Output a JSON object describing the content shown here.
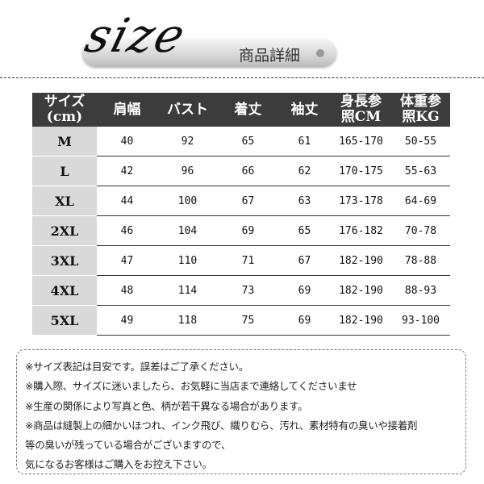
{
  "header": {
    "logo_text": "size",
    "subtitle": "商品詳細"
  },
  "table": {
    "columns": [
      "サイズ\n(cm)",
      "肩幅",
      "バスト",
      "着丈",
      "袖丈",
      "身長参\n照CM",
      "体重参\n照KG"
    ],
    "rows": [
      [
        "M",
        "40",
        "92",
        "65",
        "61",
        "165-170",
        "50-55"
      ],
      [
        "L",
        "42",
        "96",
        "66",
        "62",
        "170-175",
        "55-63"
      ],
      [
        "XL",
        "44",
        "100",
        "67",
        "63",
        "173-178",
        "64-69"
      ],
      [
        "2XL",
        "46",
        "104",
        "69",
        "65",
        "176-182",
        "70-78"
      ],
      [
        "3XL",
        "47",
        "110",
        "71",
        "67",
        "182-190",
        "78-88"
      ],
      [
        "4XL",
        "48",
        "114",
        "73",
        "69",
        "182-190",
        "88-93"
      ],
      [
        "5XL",
        "49",
        "118",
        "75",
        "69",
        "182-190",
        "93-100"
      ]
    ]
  },
  "notes": [
    "※サイズ表記は目安です。誤差はご了承ください。",
    "※購入際、サイズに迷いましたら、お気軽に当店まで連絡してくださいませ",
    "※生産の関係により写真と色、柄が若干異なる場合があります。",
    "※商品は縫製上の細かいほつれ、インク飛び、織りむら、汚れ、素材特有の臭いや接着剤",
    "等の臭いが残っている場合がございますので、",
    "気になるお客様はご購入をお控え下さい。"
  ]
}
